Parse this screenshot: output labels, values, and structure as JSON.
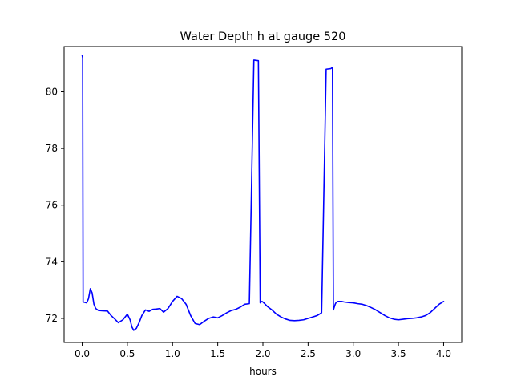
{
  "chart_data": {
    "type": "line",
    "title": "Water Depth h at gauge 520",
    "xlabel": "hours",
    "ylabel": "",
    "xlim": [
      -0.2,
      4.2
    ],
    "ylim": [
      71.15,
      81.6
    ],
    "xticks": [
      0.0,
      0.5,
      1.0,
      1.5,
      2.0,
      2.5,
      3.0,
      3.5,
      4.0
    ],
    "xtick_labels": [
      "0.0",
      "0.5",
      "1.0",
      "1.5",
      "2.0",
      "2.5",
      "3.0",
      "3.5",
      "4.0"
    ],
    "yticks": [
      72,
      74,
      76,
      78,
      80
    ],
    "ytick_labels": [
      "72",
      "74",
      "76",
      "78",
      "80"
    ],
    "grid": false,
    "series": [
      {
        "color": "#0000ff",
        "x": [
          0.0,
          0.005,
          0.01,
          0.011,
          0.05,
          0.07,
          0.09,
          0.11,
          0.13,
          0.15,
          0.18,
          0.22,
          0.28,
          0.32,
          0.36,
          0.4,
          0.45,
          0.5,
          0.53,
          0.55,
          0.57,
          0.6,
          0.63,
          0.66,
          0.7,
          0.74,
          0.78,
          0.82,
          0.86,
          0.9,
          0.95,
          1.0,
          1.05,
          1.1,
          1.15,
          1.2,
          1.25,
          1.3,
          1.35,
          1.4,
          1.45,
          1.5,
          1.55,
          1.6,
          1.65,
          1.7,
          1.75,
          1.8,
          1.85,
          1.9,
          1.95,
          1.97,
          1.98,
          1.99,
          2.0,
          2.02,
          2.05,
          2.1,
          2.15,
          2.2,
          2.25,
          2.3,
          2.35,
          2.4,
          2.45,
          2.5,
          2.55,
          2.6,
          2.65,
          2.7,
          2.75,
          2.77,
          2.78,
          2.79,
          2.8,
          2.81,
          2.83,
          2.87,
          2.9,
          2.95,
          3.0,
          3.05,
          3.1,
          3.15,
          3.2,
          3.25,
          3.3,
          3.35,
          3.4,
          3.45,
          3.5,
          3.55,
          3.6,
          3.65,
          3.7,
          3.75,
          3.8,
          3.85,
          3.9,
          3.95,
          4.0
        ],
        "y": [
          81.28,
          81.2,
          72.6,
          72.58,
          72.55,
          72.7,
          73.05,
          72.9,
          72.5,
          72.35,
          72.28,
          72.27,
          72.26,
          72.1,
          71.98,
          71.85,
          71.95,
          72.15,
          71.95,
          71.7,
          71.58,
          71.65,
          71.85,
          72.1,
          72.3,
          72.25,
          72.32,
          72.33,
          72.35,
          72.22,
          72.35,
          72.6,
          72.78,
          72.7,
          72.5,
          72.1,
          71.82,
          71.78,
          71.9,
          72.0,
          72.05,
          72.02,
          72.1,
          72.2,
          72.28,
          72.32,
          72.4,
          72.5,
          72.52,
          81.12,
          81.1,
          72.55,
          72.58,
          72.6,
          72.58,
          72.52,
          72.42,
          72.3,
          72.15,
          72.05,
          71.98,
          71.93,
          71.92,
          71.93,
          71.95,
          72.0,
          72.05,
          72.1,
          72.2,
          80.8,
          80.82,
          80.86,
          72.3,
          72.4,
          72.5,
          72.56,
          72.6,
          72.6,
          72.58,
          72.56,
          72.55,
          72.52,
          72.5,
          72.45,
          72.38,
          72.3,
          72.2,
          72.1,
          72.02,
          71.97,
          71.95,
          71.97,
          71.99,
          72.0,
          72.02,
          72.05,
          72.1,
          72.2,
          72.35,
          72.5,
          72.6
        ]
      }
    ]
  }
}
